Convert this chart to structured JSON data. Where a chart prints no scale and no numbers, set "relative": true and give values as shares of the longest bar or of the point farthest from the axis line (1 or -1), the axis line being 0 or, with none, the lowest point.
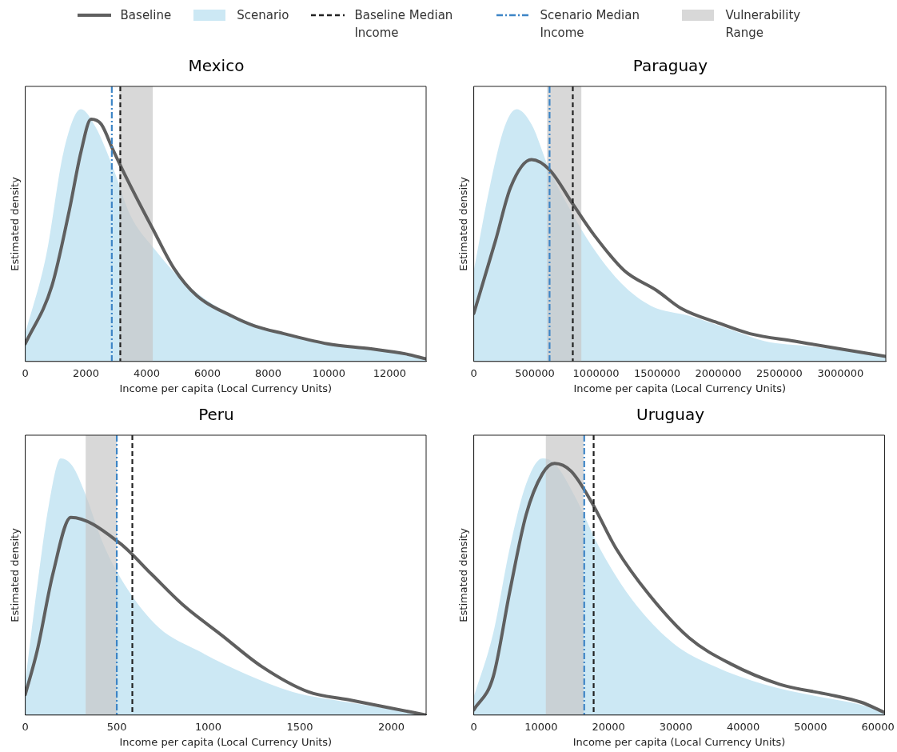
{
  "chart_data": [
    {
      "type": "area",
      "title": "Mexico",
      "xlabel": "Income per capita (Local Currency Units)",
      "ylabel": "Estimated density",
      "relative": true,
      "tick_labels": "x",
      "legend": "top",
      "xlim": [
        0,
        13200
      ],
      "xticks": [
        0,
        2000,
        4000,
        6000,
        8000,
        10000,
        12000
      ],
      "series": [
        {
          "name": "Scenario",
          "color": "#cce8f4",
          "x": [
            0,
            688,
            1261,
            1834,
            2311,
            2884,
            3457,
            4222,
            5177,
            6132,
            7087,
            8519,
            9952,
            11385,
            12531,
            13200
          ],
          "values": [
            0.11,
            0.42,
            0.83,
            1.0,
            0.93,
            0.77,
            0.58,
            0.45,
            0.32,
            0.23,
            0.17,
            0.11,
            0.07,
            0.05,
            0.03,
            0.01
          ]
        },
        {
          "name": "Baseline",
          "type": "line",
          "color": "#5f5f5f",
          "x": [
            0,
            879,
            1452,
            1834,
            2168,
            2502,
            2884,
            3362,
            4222,
            4890,
            5654,
            6800,
            7564,
            8519,
            9952,
            11385,
            12531,
            13200
          ],
          "values": [
            0.07,
            0.3,
            0.6,
            0.83,
            0.96,
            0.94,
            0.84,
            0.72,
            0.52,
            0.37,
            0.26,
            0.18,
            0.14,
            0.11,
            0.07,
            0.05,
            0.03,
            0.01
          ]
        }
      ],
      "ref_lines": [
        {
          "axis": "x",
          "value": 3130,
          "label": "Baseline Median Income",
          "color": "#222222",
          "line_style": "dashed"
        },
        {
          "axis": "x",
          "value": 2850,
          "label": "Scenario Median Income",
          "color": "#3d85c6",
          "line_style": "dashdot"
        }
      ],
      "bands": [
        {
          "axis": "x",
          "from": 3100,
          "to": 4200,
          "label": "Vulnerability Range",
          "color": "#c8c8c8"
        }
      ]
    },
    {
      "type": "area",
      "title": "Paraguay",
      "xlabel": "Income per capita (Local Currency Units)",
      "ylabel": "Estimated density",
      "relative": true,
      "tick_labels": "x",
      "xlim": [
        0,
        3370000
      ],
      "xticks": [
        0,
        500000,
        1000000,
        1500000,
        2000000,
        2500000,
        3000000
      ],
      "series": [
        {
          "color": "#cce8f4",
          "x": [
            0,
            130000,
            252000,
            350000,
            472000,
            619000,
            790000,
            962000,
            1206000,
            1451000,
            1769000,
            2136000,
            2381000,
            2748000,
            3115000,
            3370000
          ],
          "values": [
            0.36,
            0.69,
            0.93,
            1.0,
            0.94,
            0.76,
            0.6,
            0.46,
            0.31,
            0.22,
            0.18,
            0.12,
            0.08,
            0.06,
            0.04,
            0.02
          ]
        },
        {
          "type": "line",
          "color": "#5f5f5f",
          "x": [
            0,
            178600,
            301000,
            472000,
            619000,
            815000,
            986000,
            1231000,
            1500000,
            1696000,
            2014000,
            2259000,
            2626000,
            2993000,
            3370000
          ],
          "values": [
            0.19,
            0.48,
            0.69,
            0.8,
            0.76,
            0.62,
            0.5,
            0.36,
            0.28,
            0.21,
            0.15,
            0.11,
            0.08,
            0.05,
            0.02
          ]
        }
      ],
      "ref_lines": [
        {
          "axis": "x",
          "value": 810000,
          "color": "#222222",
          "line_style": "dashed"
        },
        {
          "axis": "x",
          "value": 620000,
          "color": "#3d85c6",
          "line_style": "dashdot"
        }
      ],
      "bands": [
        {
          "axis": "x",
          "from": 600000,
          "to": 880000,
          "color": "#c8c8c8"
        }
      ]
    },
    {
      "type": "area",
      "title": "Peru",
      "xlabel": "Income per capita (Local Currency Units)",
      "ylabel": "Estimated density",
      "relative": true,
      "tick_labels": "x",
      "xlim": [
        0,
        2190
      ],
      "xticks": [
        0,
        500,
        1000,
        1500,
        2000
      ],
      "series": [
        {
          "color": "#cce8f4",
          "x": [
            0,
            65,
            129,
            194,
            258,
            323,
            430,
            559,
            731,
            946,
            1204,
            1462,
            1763,
            2190
          ],
          "values": [
            0.13,
            0.5,
            0.82,
            1.0,
            0.97,
            0.87,
            0.66,
            0.49,
            0.34,
            0.25,
            0.16,
            0.09,
            0.05,
            0.0
          ]
        },
        {
          "type": "line",
          "color": "#5f5f5f",
          "x": [
            0,
            65,
            151,
            249,
            516,
            688,
            860,
            1075,
            1290,
            1548,
            1763,
            1978,
            2190
          ],
          "values": [
            0.08,
            0.25,
            0.55,
            0.77,
            0.67,
            0.55,
            0.43,
            0.31,
            0.19,
            0.09,
            0.06,
            0.03,
            0.0
          ]
        }
      ],
      "ref_lines": [
        {
          "axis": "x",
          "value": 585,
          "color": "#222222",
          "line_style": "dashed"
        },
        {
          "axis": "x",
          "value": 500,
          "color": "#3d85c6",
          "line_style": "dashdot"
        }
      ],
      "bands": [
        {
          "axis": "x",
          "from": 330,
          "to": 500,
          "color": "#c8c8c8"
        }
      ]
    },
    {
      "type": "area",
      "title": "Uruguay",
      "xlabel": "Income per capita (Local Currency Units)",
      "ylabel": "Estimated density",
      "relative": true,
      "tick_labels": "x",
      "xlim": [
        0,
        61000
      ],
      "xticks": [
        0,
        10000,
        20000,
        30000,
        40000,
        50000,
        60000
      ],
      "series": [
        {
          "color": "#cce8f4",
          "x": [
            0,
            2900,
            5340,
            7770,
            10200,
            12000,
            15050,
            18700,
            23500,
            29600,
            35700,
            43000,
            51500,
            57500,
            61000
          ],
          "values": [
            0.07,
            0.32,
            0.65,
            0.9,
            1.0,
            0.98,
            0.85,
            0.65,
            0.45,
            0.28,
            0.19,
            0.12,
            0.07,
            0.04,
            0.01
          ]
        },
        {
          "type": "line",
          "color": "#5f5f5f",
          "x": [
            0,
            2900,
            5340,
            7770,
            10200,
            12000,
            14440,
            17480,
            21100,
            26000,
            32000,
            38100,
            45400,
            52700,
            57500,
            61000
          ],
          "values": [
            0.02,
            0.15,
            0.48,
            0.78,
            0.94,
            0.98,
            0.95,
            0.83,
            0.65,
            0.47,
            0.3,
            0.2,
            0.12,
            0.08,
            0.05,
            0.01
          ]
        }
      ],
      "ref_lines": [
        {
          "axis": "x",
          "value": 17800,
          "color": "#222222",
          "line_style": "dashed"
        },
        {
          "axis": "x",
          "value": 16400,
          "color": "#3d85c6",
          "line_style": "dashdot"
        }
      ],
      "bands": [
        {
          "axis": "x",
          "from": 10700,
          "to": 16300,
          "color": "#c8c8c8"
        }
      ]
    }
  ]
}
